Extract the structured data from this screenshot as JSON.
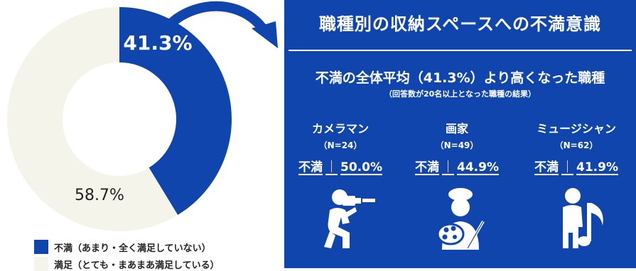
{
  "chart_data": {
    "type": "pie",
    "categories": [
      "不満（あまり・全く満足していない）",
      "満足（とても・まあまあ満足している）"
    ],
    "values": [
      41.3,
      58.7
    ],
    "value_labels": [
      "41.3%",
      "58.7%"
    ],
    "colors": [
      "#0f45ad",
      "#f5f4ea"
    ],
    "legend_placement": "bottom-left"
  },
  "panel": {
    "title": "職種別の収納スペースへの不満意識",
    "subtitle": "不満の全体平均（41.3%）より高くなった職種",
    "note": "（回答数が20名以上となった職種の結果）",
    "jobs": [
      {
        "name": "カメラマン",
        "n": "（N=24）",
        "label": "不満",
        "sep": "｜",
        "value": "50.0%",
        "icon": "photographer-icon"
      },
      {
        "name": "画家",
        "n": "（N=49）",
        "label": "不満",
        "sep": "｜",
        "value": "44.9%",
        "icon": "painter-icon"
      },
      {
        "name": "ミュージシャン",
        "n": "（N=62）",
        "label": "不満",
        "sep": "｜",
        "value": "41.9%",
        "icon": "musician-icon"
      }
    ],
    "bg_color": "#0f45ad"
  },
  "arrow": {
    "icon": "curved-arrow-icon"
  }
}
